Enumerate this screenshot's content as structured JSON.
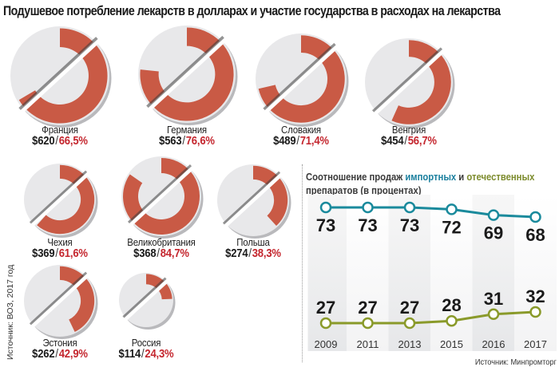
{
  "title": "Подушевое потребление лекарств в долларах и участие государства в расходах на лекарства",
  "source_left": "Источник: ВОЗ, 2017 год",
  "colors": {
    "state_share": "#c95a45",
    "pill_body": "#e8e8ea",
    "percent_text": "#c4262e",
    "imported": "#1a8a9c",
    "domestic": "#8a9a2a"
  },
  "pills": [
    {
      "country": "Франция",
      "spending": "$620",
      "share": "66,5%",
      "share_value": 66.5
    },
    {
      "country": "Германия",
      "spending": "$563",
      "share": "76,6%",
      "share_value": 76.6
    },
    {
      "country": "Словакия",
      "spending": "$489",
      "share": "71,4%",
      "share_value": 71.4
    },
    {
      "country": "Венгрия",
      "spending": "$454",
      "share": "56,7%",
      "share_value": 56.7
    },
    {
      "country": "Чехия",
      "spending": "$369",
      "share": "61,6%",
      "share_value": 61.6
    },
    {
      "country": "Великобритания",
      "spending": "$368",
      "share": "84,7%",
      "share_value": 84.7
    },
    {
      "country": "Польша",
      "spending": "$274",
      "share": "38,3%",
      "share_value": 38.3
    },
    {
      "country": "Эстония",
      "spending": "$262",
      "share": "42,9%",
      "share_value": 42.9
    },
    {
      "country": "Россия",
      "spending": "$114",
      "share": "24,3%",
      "share_value": 24.3
    }
  ],
  "line_chart": {
    "title_part1": "Соотношение продаж ",
    "title_imported": "импортных",
    "title_and": " и ",
    "title_domestic": "отечественных",
    "title_line2": "препаратов (в процентах)",
    "source": "Источник: Минпромторг"
  },
  "chart_data": [
    {
      "type": "pie",
      "title": "Подушевое потребление лекарств в долларах и участие государства в расходах на лекарства",
      "categories": [
        "Франция",
        "Германия",
        "Словакия",
        "Венгрия",
        "Чехия",
        "Великобритания",
        "Польша",
        "Эстония",
        "Россия"
      ],
      "series": [
        {
          "name": "Подушевое потребление, $",
          "values": [
            620,
            563,
            489,
            454,
            369,
            368,
            274,
            262,
            114
          ]
        },
        {
          "name": "Доля государства, %",
          "values": [
            66.5,
            76.6,
            71.4,
            56.7,
            61.6,
            84.7,
            38.3,
            42.9,
            24.3
          ]
        }
      ]
    },
    {
      "type": "line",
      "title": "Соотношение продаж импортных и отечественных препаратов (в процентах)",
      "x": [
        "2009",
        "2011",
        "2013",
        "2015",
        "2016",
        "2017"
      ],
      "series": [
        {
          "name": "импортные",
          "values": [
            73,
            73,
            73,
            72,
            69,
            68
          ]
        },
        {
          "name": "отечественные",
          "values": [
            27,
            27,
            27,
            28,
            31,
            32
          ]
        }
      ],
      "xlabel": "",
      "ylabel": "%",
      "grid": false
    }
  ]
}
